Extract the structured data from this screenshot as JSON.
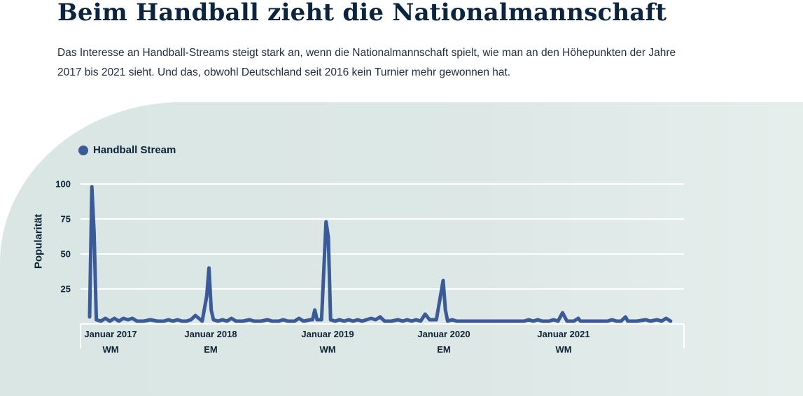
{
  "header": {
    "title": "Beim Handball zieht die Nationalmannschaft",
    "intro": "Das Interesse an Handball-Streams steigt stark an, wenn die Nationalmannschaft spielt, wie man an den Höhepunkten der Jahre 2017 bis 2021 sieht. Und das, obwohl Deutschland seit 2016 kein Turnier mehr gewonnen hat."
  },
  "colors": {
    "line": "#3a5a98",
    "background": "#dde8e6",
    "grid": "#ffffff",
    "text": "#0d2236"
  },
  "chart_data": {
    "type": "line",
    "title": "",
    "xlabel": "",
    "ylabel": "Popularität",
    "ylim": [
      0,
      100
    ],
    "xlim": [
      "2017-01-08",
      "2021-12-28"
    ],
    "yticks": [
      "100",
      "75",
      "50",
      "25"
    ],
    "grid": true,
    "legend_position": "top-left",
    "x_tick_labels": [
      {
        "label": "Januar 2017",
        "event": "WM"
      },
      {
        "label": "Januar 2018",
        "event": "EM"
      },
      {
        "label": "Januar 2019",
        "event": "WM"
      },
      {
        "label": "Januar 2020",
        "event": "EM"
      },
      {
        "label": "Januar 2021",
        "event": "WM"
      }
    ],
    "series": [
      {
        "name": "Handball Stream",
        "points": [
          [
            "2017-01-08",
            5
          ],
          [
            "2017-01-15",
            98
          ],
          [
            "2017-01-22",
            65
          ],
          [
            "2017-01-29",
            3
          ],
          [
            "2017-02-12",
            2
          ],
          [
            "2017-02-26",
            4
          ],
          [
            "2017-03-12",
            2
          ],
          [
            "2017-03-26",
            4
          ],
          [
            "2017-04-09",
            2
          ],
          [
            "2017-04-23",
            4
          ],
          [
            "2017-05-07",
            3
          ],
          [
            "2017-05-21",
            4
          ],
          [
            "2017-06-04",
            2
          ],
          [
            "2017-06-25",
            2
          ],
          [
            "2017-07-16",
            3
          ],
          [
            "2017-08-06",
            2
          ],
          [
            "2017-08-27",
            2
          ],
          [
            "2017-09-10",
            3
          ],
          [
            "2017-09-24",
            2
          ],
          [
            "2017-10-08",
            3
          ],
          [
            "2017-10-22",
            2
          ],
          [
            "2017-11-05",
            2
          ],
          [
            "2017-11-19",
            3
          ],
          [
            "2017-12-03",
            6
          ],
          [
            "2017-12-24",
            2
          ],
          [
            "2018-01-07",
            20
          ],
          [
            "2018-01-14",
            40
          ],
          [
            "2018-01-21",
            10
          ],
          [
            "2018-01-28",
            3
          ],
          [
            "2018-02-11",
            2
          ],
          [
            "2018-02-25",
            3
          ],
          [
            "2018-03-11",
            2
          ],
          [
            "2018-03-25",
            4
          ],
          [
            "2018-04-08",
            2
          ],
          [
            "2018-04-29",
            2
          ],
          [
            "2018-05-20",
            3
          ],
          [
            "2018-06-03",
            2
          ],
          [
            "2018-06-24",
            2
          ],
          [
            "2018-07-15",
            3
          ],
          [
            "2018-07-29",
            2
          ],
          [
            "2018-08-19",
            2
          ],
          [
            "2018-09-02",
            3
          ],
          [
            "2018-09-16",
            2
          ],
          [
            "2018-10-07",
            2
          ],
          [
            "2018-10-21",
            4
          ],
          [
            "2018-11-04",
            2
          ],
          [
            "2018-11-25",
            3
          ],
          [
            "2018-12-02",
            3
          ],
          [
            "2018-12-09",
            10
          ],
          [
            "2018-12-16",
            3
          ],
          [
            "2018-12-30",
            3
          ],
          [
            "2019-01-13",
            73
          ],
          [
            "2019-01-20",
            62
          ],
          [
            "2019-01-27",
            3
          ],
          [
            "2019-02-10",
            2
          ],
          [
            "2019-02-24",
            3
          ],
          [
            "2019-03-10",
            2
          ],
          [
            "2019-03-24",
            3
          ],
          [
            "2019-04-07",
            2
          ],
          [
            "2019-04-21",
            3
          ],
          [
            "2019-05-05",
            2
          ],
          [
            "2019-05-19",
            3
          ],
          [
            "2019-06-02",
            4
          ],
          [
            "2019-06-16",
            3
          ],
          [
            "2019-06-30",
            5
          ],
          [
            "2019-07-14",
            2
          ],
          [
            "2019-08-04",
            2
          ],
          [
            "2019-08-25",
            3
          ],
          [
            "2019-09-08",
            2
          ],
          [
            "2019-09-22",
            3
          ],
          [
            "2019-10-06",
            2
          ],
          [
            "2019-10-20",
            3
          ],
          [
            "2019-11-03",
            2
          ],
          [
            "2019-11-17",
            7
          ],
          [
            "2019-12-01",
            3
          ],
          [
            "2019-12-22",
            3
          ],
          [
            "2020-01-12",
            31
          ],
          [
            "2020-01-19",
            10
          ],
          [
            "2020-01-26",
            2
          ],
          [
            "2020-02-09",
            3
          ],
          [
            "2020-02-23",
            2
          ],
          [
            "2020-04-19",
            2
          ],
          [
            "2020-06-14",
            2
          ],
          [
            "2020-08-09",
            2
          ],
          [
            "2020-09-20",
            2
          ],
          [
            "2020-10-04",
            3
          ],
          [
            "2020-10-18",
            2
          ],
          [
            "2020-11-01",
            3
          ],
          [
            "2020-11-15",
            2
          ],
          [
            "2020-12-06",
            2
          ],
          [
            "2020-12-20",
            3
          ],
          [
            "2021-01-03",
            2
          ],
          [
            "2021-01-10",
            5
          ],
          [
            "2021-01-17",
            8
          ],
          [
            "2021-01-31",
            2
          ],
          [
            "2021-02-21",
            2
          ],
          [
            "2021-03-07",
            4
          ],
          [
            "2021-03-14",
            2
          ],
          [
            "2021-04-04",
            2
          ],
          [
            "2021-05-02",
            2
          ],
          [
            "2021-06-06",
            2
          ],
          [
            "2021-06-20",
            3
          ],
          [
            "2021-07-04",
            2
          ],
          [
            "2021-07-18",
            2
          ],
          [
            "2021-08-01",
            5
          ],
          [
            "2021-08-08",
            2
          ],
          [
            "2021-09-05",
            2
          ],
          [
            "2021-10-03",
            3
          ],
          [
            "2021-10-17",
            2
          ],
          [
            "2021-11-07",
            3
          ],
          [
            "2021-11-21",
            2
          ],
          [
            "2021-12-05",
            4
          ],
          [
            "2021-12-19",
            2
          ]
        ]
      }
    ]
  }
}
